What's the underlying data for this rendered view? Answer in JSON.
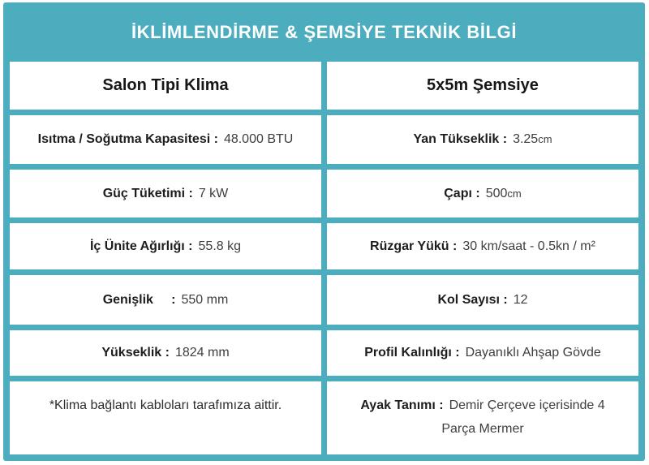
{
  "title": "İKLİMLENDİRME & ŞEMSİYE TEKNİK BİLGİ",
  "columns": {
    "left": "Salon Tipi Klima",
    "right": "5x5m Şemsiye"
  },
  "rows": [
    {
      "left": {
        "label": "Isıtma / Soğutma Kapasitesi :",
        "value": "48.000 BTU"
      },
      "right": {
        "label": "Yan Tükseklik :",
        "value": "3.25",
        "unit": "cm"
      }
    },
    {
      "left": {
        "label": "Güç Tüketimi :",
        "value": "7 kW"
      },
      "right": {
        "label": "Çapı :",
        "value": "500",
        "unit": "cm"
      }
    },
    {
      "left": {
        "label": "İç Ünite Ağırlığı :",
        "value": "55.8 kg"
      },
      "right": {
        "label": "Rüzgar Yükü :",
        "value": "30 km/saat - 0.5kn / m²"
      }
    },
    {
      "left": {
        "label": "Genişlik     :",
        "value": "550 mm"
      },
      "right": {
        "label": "Kol Sayısı :",
        "value": "12"
      }
    },
    {
      "left": {
        "label": "Yükseklik :",
        "value": "1824 mm"
      },
      "right": {
        "label": "Profil Kalınlığı :",
        "value": "Dayanıklı Ahşap Gövde"
      }
    },
    {
      "left": {
        "note": "*Klima bağlantı kabloları tarafımıza aittir."
      },
      "right": {
        "label": "Ayak Tanımı :",
        "value": "Demir Çerçeve içerisinde 4 Parça Mermer"
      }
    }
  ],
  "colors": {
    "accent": "#4badbd",
    "label_text": "#1d1d1d",
    "value_text": "#3e3e3e",
    "background": "#ffffff"
  },
  "chart_data": {
    "type": "table",
    "title": "İKLİMLENDİRME & ŞEMSİYE TEKNİK BİLGİ",
    "columns": [
      "Salon Tipi Klima",
      "5x5m Şemsiye"
    ],
    "rows": [
      [
        "Isıtma / Soğutma Kapasitesi : 48.000 BTU",
        "Yan Tükseklik : 3.25cm"
      ],
      [
        "Güç Tüketimi : 7 kW",
        "Çapı : 500cm"
      ],
      [
        "İç Ünite Ağırlığı : 55.8 kg",
        "Rüzgar Yükü : 30 km/saat - 0.5kn / m²"
      ],
      [
        "Genişlik : 550 mm",
        "Kol Sayısı : 12"
      ],
      [
        "Yükseklik : 1824 mm",
        "Profil Kalınlığı : Dayanıklı Ahşap Gövde"
      ],
      [
        "*Klima bağlantı kabloları tarafımıza aittir.",
        "Ayak Tanımı : Demir Çerçeve içerisinde 4 Parça Mermer"
      ]
    ],
    "legend": null,
    "grid": false
  }
}
